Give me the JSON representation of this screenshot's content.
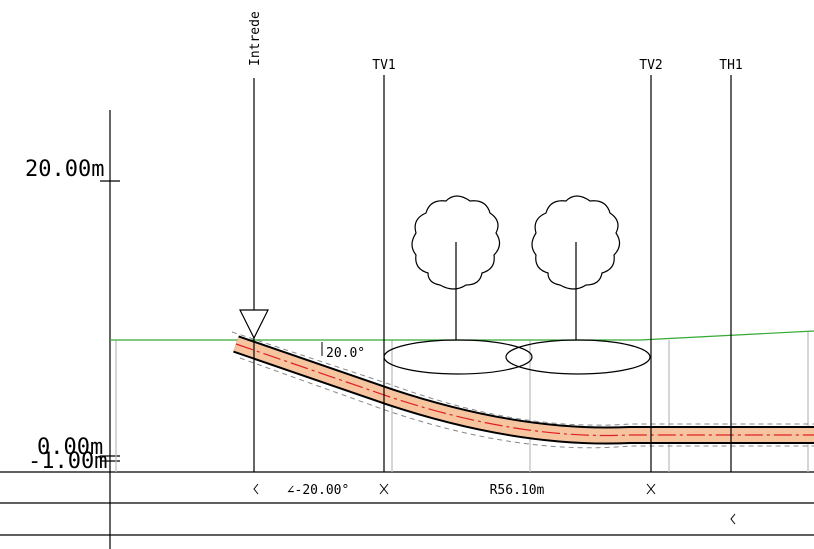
{
  "axis": {
    "labels": [
      "20.00m",
      "0.00m",
      "-1.00m"
    ]
  },
  "markers": [
    {
      "label": "Intrede"
    },
    {
      "label": "TV1"
    },
    {
      "label": "TV2"
    },
    {
      "label": "TH1"
    }
  ],
  "annotations": {
    "entry_angle": "20.0°",
    "angle": "∠-20.00°",
    "radius": "R56.10m"
  }
}
